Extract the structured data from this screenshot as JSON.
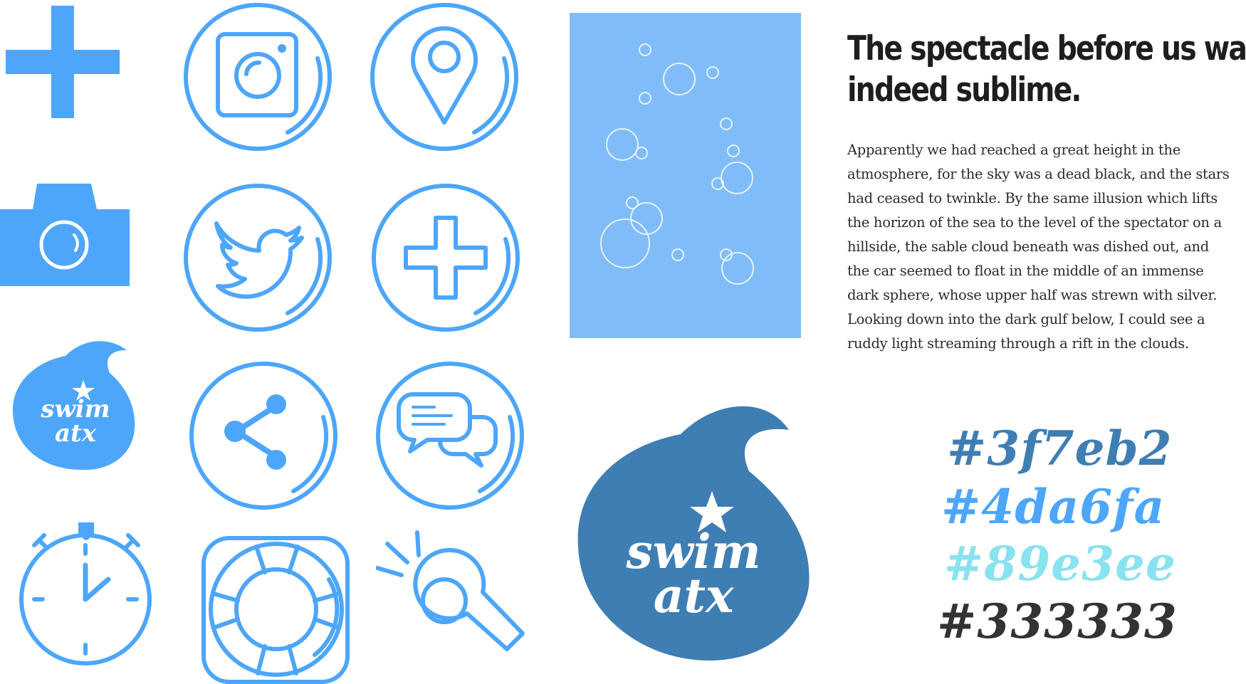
{
  "colors": {
    "dark_blue": "#3f7eb2",
    "blue": "#4da6fa",
    "light_blue": "#89e3ee",
    "dark": "#333333",
    "panel": "#80bdf8"
  },
  "icons": [
    "plus-icon",
    "instagram-icon",
    "location-pin-icon",
    "camera-icon",
    "twitter-icon",
    "plus-circle-icon",
    "swim-atx-logo",
    "share-icon",
    "chat-bubbles-icon",
    "stopwatch-icon",
    "life-ring-icon",
    "whistle-icon"
  ],
  "logo": {
    "line1": "swim",
    "line2": "atx"
  },
  "article": {
    "heading_line1": "The spectacle before us was",
    "heading_line2": "indeed sublime.",
    "body_lines": [
      "Apparently we had reached a great height in the",
      "atmosphere, for the sky was a dead black, and the stars",
      "had ceased to twinkle. By the same illusion which lifts",
      "the horizon of the sea to the level of the spectator on a",
      "hillside, the sable cloud beneath was dished out, and",
      "the car seemed to float in the middle of an immense",
      "dark sphere, whose upper half was strewn with silver.",
      "Looking down into the dark gulf below, I could see a",
      "ruddy light streaming through a rift in the clouds."
    ]
  },
  "palette": [
    {
      "label": "#3f7eb2",
      "color": "#3f7eb2"
    },
    {
      "label": "#4da6fa",
      "color": "#4da6fa"
    },
    {
      "label": "#89e3ee",
      "color": "#89e3ee"
    },
    {
      "label": "#333333",
      "color": "#333333"
    }
  ]
}
